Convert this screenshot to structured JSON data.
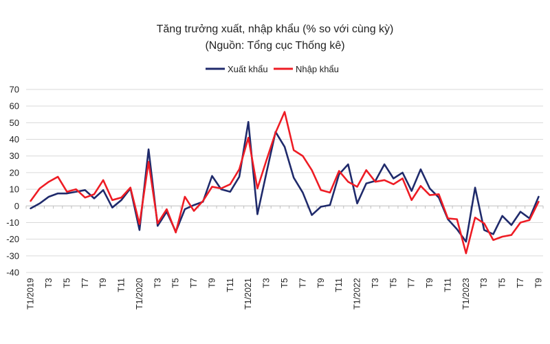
{
  "chart_data": {
    "type": "line",
    "title": "Tăng trưởng xuất, nhập khẩu (% so với cùng kỳ)",
    "subtitle": "(Nguồn: Tổng cục Thống kê)",
    "xlabel": "",
    "ylabel": "",
    "ylim": [
      -40,
      70
    ],
    "yticks": [
      -40,
      -30,
      -20,
      -10,
      0,
      10,
      20,
      30,
      40,
      50,
      60,
      70
    ],
    "grid": "horizontal",
    "legend_position": "top-center",
    "x": [
      "T1/2019",
      "T2",
      "T3",
      "T4",
      "T5",
      "T6",
      "T7",
      "T8",
      "T9",
      "T10",
      "T11",
      "T12",
      "T1/2020",
      "T2",
      "T3",
      "T4",
      "T5",
      "T6",
      "T7",
      "T8",
      "T9",
      "T10",
      "T11",
      "T12",
      "T1/2021",
      "T2",
      "T3",
      "T4",
      "T5",
      "T6",
      "T7",
      "T8",
      "T9",
      "T10",
      "T11",
      "T12",
      "T1/2022",
      "T2",
      "T3",
      "T4",
      "T5",
      "T6",
      "T7",
      "T8",
      "T9",
      "T10",
      "T11",
      "T12",
      "T1/2023",
      "T2",
      "T3",
      "T4",
      "T5",
      "T6",
      "T7",
      "T8",
      "T9"
    ],
    "x_tick_labels": [
      "T1/2019",
      "",
      "T3",
      "",
      "T5",
      "",
      "T7",
      "",
      "T9",
      "",
      "T11",
      "",
      "T1/2020",
      "",
      "T3",
      "",
      "T5",
      "",
      "T7",
      "",
      "T9",
      "",
      "T11",
      "",
      "T1/2021",
      "",
      "T3",
      "",
      "T5",
      "",
      "T7",
      "",
      "T9",
      "",
      "T11",
      "",
      "T1/2022",
      "",
      "T3",
      "",
      "T5",
      "",
      "T7",
      "",
      "T9",
      "",
      "T11",
      "",
      "T1/2023",
      "",
      "T3",
      "",
      "T5",
      "",
      "T7",
      "",
      "T9"
    ],
    "series": [
      {
        "name": "Xuất khẩu",
        "color": "#1f2a6b",
        "values": [
          -1.5,
          1.5,
          5.5,
          7.5,
          7.5,
          8.5,
          9.5,
          4.5,
          9.5,
          -1,
          3.5,
          10.5,
          -14.5,
          34,
          -12,
          -3.5,
          -15.5,
          -2,
          0.5,
          2.5,
          18,
          10,
          8.5,
          17.5,
          50.5,
          -5,
          20,
          44.5,
          35.5,
          17,
          8,
          -5.5,
          -0.5,
          0.5,
          19,
          25,
          1.5,
          13.5,
          15,
          25,
          16.5,
          20,
          9,
          22,
          10.5,
          5,
          -8,
          -14,
          -21.5,
          11,
          -14.5,
          -17,
          -6,
          -11.5,
          -3.5,
          -7.5,
          5.5
        ]
      },
      {
        "name": "Nhập khẩu",
        "color": "#ee1c24",
        "values": [
          3,
          10.5,
          14.5,
          17.5,
          8.5,
          10,
          5,
          7,
          15.5,
          3.5,
          5,
          11,
          -11,
          26.5,
          -10.5,
          -2,
          -16,
          5.5,
          -3,
          3,
          11.5,
          10.5,
          13,
          22,
          41,
          10.5,
          27.5,
          44,
          56.5,
          33.5,
          30,
          21.5,
          9.5,
          8,
          21,
          14.5,
          11.5,
          21.5,
          14.5,
          15.5,
          13,
          16.5,
          3.5,
          12,
          6.5,
          7,
          -7.5,
          -8,
          -28.5,
          -7,
          -10.5,
          -20.5,
          -18.5,
          -17.5,
          -10,
          -8.5,
          2.5
        ]
      }
    ]
  }
}
